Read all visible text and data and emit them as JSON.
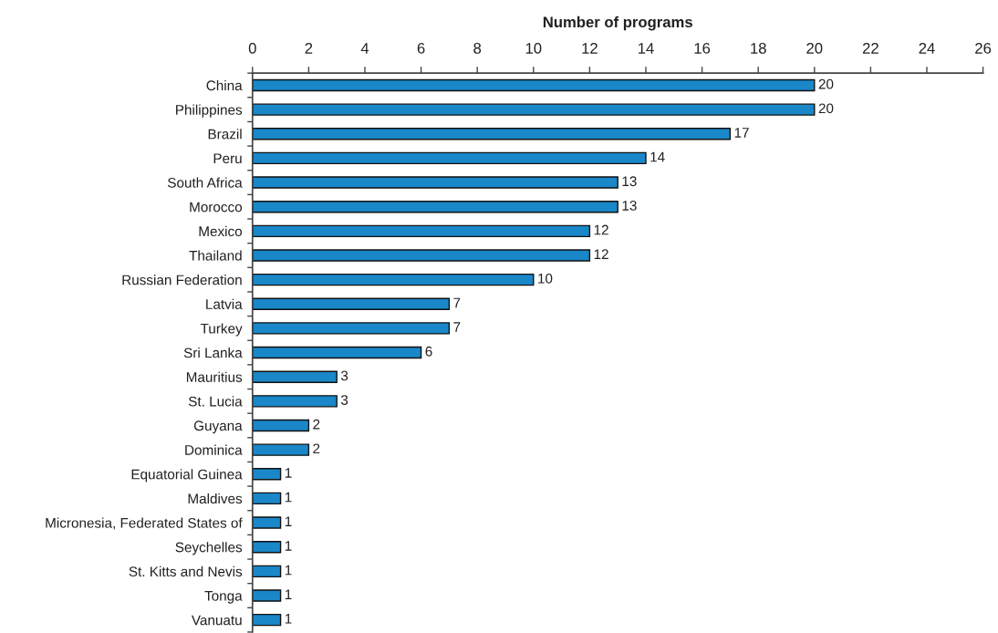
{
  "chart_data": {
    "type": "bar",
    "orientation": "horizontal",
    "xlabel": "Number of programs",
    "categories": [
      "China",
      "Philippines",
      "Brazil",
      "Peru",
      "South Africa",
      "Morocco",
      "Mexico",
      "Thailand",
      "Russian Federation",
      "Latvia",
      "Turkey",
      "Sri Lanka",
      "Mauritius",
      "St. Lucia",
      "Guyana",
      "Dominica",
      "Equatorial Guinea",
      "Maldives",
      "Micronesia, Federated States of",
      "Seychelles",
      "St. Kitts and Nevis",
      "Tonga",
      "Vanuatu"
    ],
    "values": [
      20,
      20,
      17,
      14,
      13,
      13,
      12,
      12,
      10,
      7,
      7,
      6,
      3,
      3,
      2,
      2,
      1,
      1,
      1,
      1,
      1,
      1,
      1
    ],
    "color": "#1a87c9",
    "xlim": [
      0,
      26
    ],
    "xticks": [
      0,
      2,
      4,
      6,
      8,
      10,
      12,
      14,
      16,
      18,
      20,
      22,
      24,
      26
    ],
    "data_labels": true,
    "grid": false
  }
}
